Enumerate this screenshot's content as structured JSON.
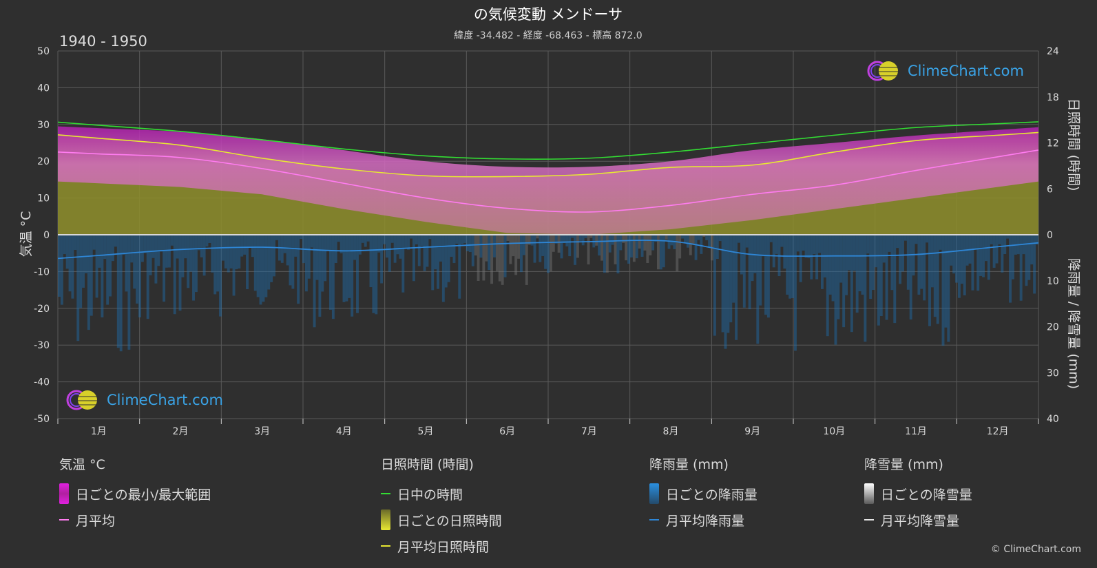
{
  "header": {
    "title": "の気候変動 メンドーサ",
    "subtitle": "緯度 -34.482 - 経度 -68.463 - 標高 872.0",
    "period": "1940 - 1950"
  },
  "branding": {
    "logo_text": "ClimeChart.com",
    "copyright": "© ClimeChart.com"
  },
  "colors": {
    "background": "#2f2f2f",
    "grid": "#5a5a5a",
    "temp_range": "#c84fb1",
    "temp_range_top": "#b21fb0",
    "sunshine_fill": "#8f8f2c",
    "daylight_line": "#33dd33",
    "sunshine_line": "#e8e832",
    "temp_mean_line": "#ff7cf0",
    "rain_line": "#2e86d6",
    "rain_bars": "#1f6fb0",
    "snow_bars": "#777777"
  },
  "chart_data": {
    "type": "line",
    "months": [
      "1月",
      "2月",
      "3月",
      "4月",
      "5月",
      "6月",
      "7月",
      "8月",
      "9月",
      "10月",
      "11月",
      "12月"
    ],
    "y_left": {
      "label": "気温 °C",
      "min": -50,
      "max": 50,
      "ticks": [
        50,
        40,
        30,
        20,
        10,
        0,
        -10,
        -20,
        -30,
        -40,
        -50
      ]
    },
    "y_right_top": {
      "label": "日照時間 (時間)",
      "min": 0,
      "max": 24,
      "ticks": [
        24,
        18,
        12,
        6,
        0
      ]
    },
    "y_right_bottom": {
      "label": "降雨量 / 降雪量 (mm)",
      "min": 0,
      "max": 40,
      "ticks": [
        0,
        10,
        20,
        30,
        40
      ]
    },
    "grid": true,
    "series": [
      {
        "name": "日中の時間",
        "axis": "sunshine",
        "values": [
          14.3,
          13.5,
          12.4,
          11.2,
          10.3,
          9.9,
          10.0,
          10.8,
          11.9,
          13.0,
          14.0,
          14.5
        ]
      },
      {
        "name": "月平均日照時間",
        "axis": "sunshine",
        "values": [
          12.6,
          11.7,
          10.0,
          8.6,
          7.7,
          7.6,
          7.9,
          8.8,
          9.1,
          10.8,
          12.3,
          13.0
        ]
      },
      {
        "name": "月平均",
        "axis": "temp",
        "values": [
          22.0,
          21.0,
          18.0,
          14.0,
          10.0,
          7.2,
          6.2,
          8.0,
          11.0,
          13.5,
          17.5,
          21.2
        ]
      },
      {
        "name": "日ごとの最小/最大範囲 (上限)",
        "axis": "temp",
        "values": [
          29.0,
          28.0,
          26.0,
          23.0,
          20.0,
          18.5,
          18.5,
          20.0,
          23.0,
          25.0,
          27.0,
          28.5
        ]
      },
      {
        "name": "日ごとの最小/最大範囲 (下限)",
        "axis": "temp",
        "values": [
          14.0,
          13.0,
          11.0,
          7.0,
          3.5,
          0.5,
          0.0,
          1.5,
          4.0,
          7.0,
          10.0,
          13.0
        ]
      },
      {
        "name": "月平均降雨量",
        "axis": "precip",
        "values": [
          4.5,
          3.2,
          2.7,
          3.5,
          2.7,
          1.9,
          1.5,
          1.4,
          4.3,
          4.6,
          4.3,
          2.6
        ]
      },
      {
        "name": "月平均降雪量",
        "axis": "precip",
        "values": [
          0,
          0,
          0,
          0,
          0,
          0.1,
          0.2,
          0.1,
          0,
          0,
          0,
          0
        ]
      }
    ]
  },
  "legend": {
    "temperature": {
      "title": "気温 °C",
      "range": "日ごとの最小/最大範囲",
      "mean": "月平均"
    },
    "sunshine": {
      "title": "日照時間 (時間)",
      "daylight": "日中の時間",
      "daily": "日ごとの日照時間",
      "mean": "月平均日照時間"
    },
    "rain": {
      "title": "降雨量 (mm)",
      "daily": "日ごとの降雨量",
      "mean": "月平均降雨量"
    },
    "snow": {
      "title": "降雪量 (mm)",
      "daily": "日ごとの降雪量",
      "mean": "月平均降雪量"
    }
  }
}
